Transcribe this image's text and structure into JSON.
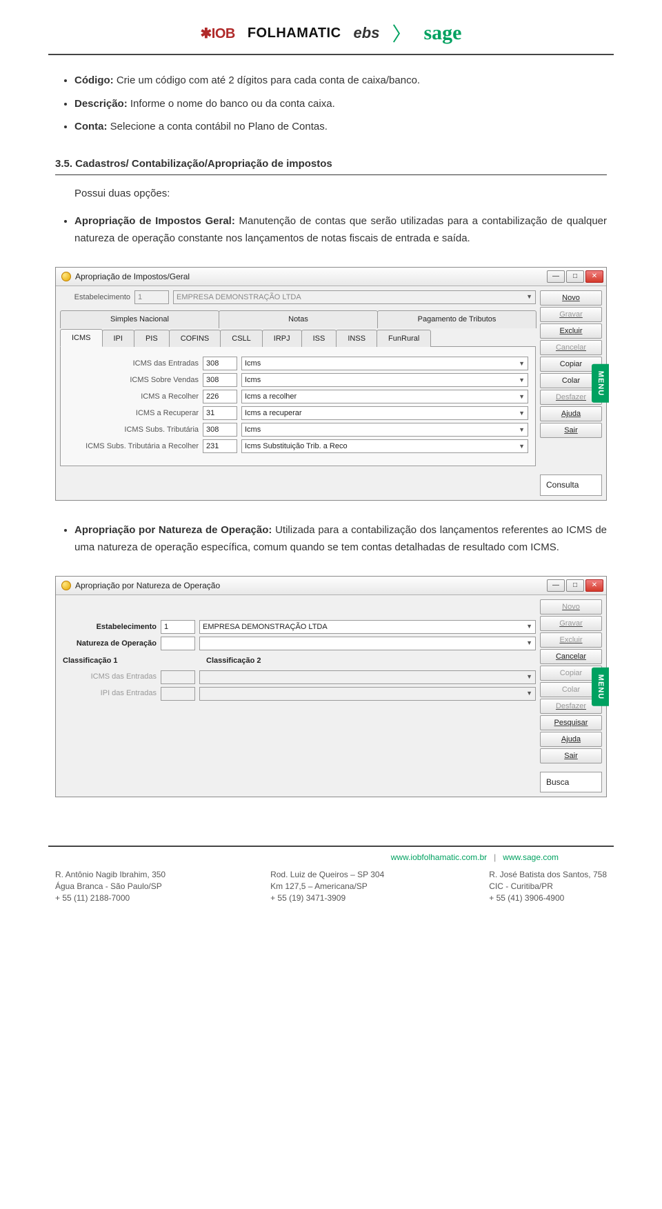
{
  "logos": {
    "iob": "✱IOB",
    "folhamatic": "FOLHAMATIC",
    "ebs": "ebs",
    "sep": "〉",
    "sage": "sage"
  },
  "bullets1": [
    {
      "label": "Código:",
      "text": " Crie um código com até 2 dígitos para cada conta de caixa/banco."
    },
    {
      "label": "Descrição:",
      "text": " Informe o nome do banco ou da conta caixa."
    },
    {
      "label": "Conta:",
      "text": " Selecione a conta contábil no Plano de Contas."
    }
  ],
  "section_heading": "3.5. Cadastros/ Contabilização/Apropriação de impostos",
  "intro": "Possui duas opções:",
  "bullet_apropriacao": {
    "label": "Apropriação de Impostos Geral:",
    "text": " Manutenção de contas que serão utilizadas para a contabilização de qualquer natureza de operação constante nos lançamentos de notas fiscais de entrada e saída."
  },
  "bullet_natureza": {
    "label": "Apropriação por Natureza de Operação:",
    "text": " Utilizada para a contabilização dos lançamentos referentes ao ICMS de uma natureza de operação específica, comum quando se tem contas detalhadas de resultado com ICMS."
  },
  "win1": {
    "title": "Apropriação de Impostos/Geral",
    "estab_label": "Estabelecimento",
    "estab_code": "1",
    "estab_name": "EMPRESA DEMONSTRAÇÃO LTDA",
    "top_tabs": [
      "Simples Nacional",
      "Notas",
      "Pagamento de Tributos"
    ],
    "sub_tabs": [
      "ICMS",
      "IPI",
      "PIS",
      "COFINS",
      "CSLL",
      "IRPJ",
      "ISS",
      "INSS",
      "FunRural"
    ],
    "rows": [
      {
        "label": "ICMS das Entradas",
        "code": "308",
        "desc": "Icms"
      },
      {
        "label": "ICMS Sobre Vendas",
        "code": "308",
        "desc": "Icms"
      },
      {
        "label": "ICMS a Recolher",
        "code": "226",
        "desc": "Icms a recolher"
      },
      {
        "label": "ICMS a Recuperar",
        "code": "31",
        "desc": "Icms a recuperar"
      },
      {
        "label": "ICMS Subs. Tributária",
        "code": "308",
        "desc": "Icms"
      },
      {
        "label": "ICMS Subs. Tributária a Recolher",
        "code": "231",
        "desc": "Icms Substituição Trib. a Reco"
      }
    ],
    "side_buttons": [
      {
        "t": "Novo",
        "d": false,
        "u": true
      },
      {
        "t": "Gravar",
        "d": true,
        "u": true
      },
      {
        "t": "Excluir",
        "d": false,
        "u": true
      },
      {
        "t": "Cancelar",
        "d": true,
        "u": true
      },
      {
        "t": "Copiar",
        "d": false,
        "u": false
      },
      {
        "t": "Colar",
        "d": false,
        "u": false
      },
      {
        "t": "Desfazer",
        "d": true,
        "u": true
      },
      {
        "t": "Ajuda",
        "d": false,
        "u": true
      },
      {
        "t": "Sair",
        "d": false,
        "u": true
      }
    ],
    "status": "Consulta",
    "menu": "MENU"
  },
  "win2": {
    "title": "Apropriação por Natureza de Operação",
    "fields": [
      {
        "label": "Estabelecimento",
        "code": "1",
        "desc": "EMPRESA DEMONSTRAÇÃO LTDA",
        "bold": true,
        "dd": true,
        "disabled": false
      },
      {
        "label": "Natureza de Operação",
        "code": "",
        "desc": "",
        "bold": true,
        "dd": true,
        "disabled": false
      }
    ],
    "class_header": {
      "c1": "Classificação 1",
      "c2": "Classificação 2"
    },
    "class_rows": [
      {
        "label": "ICMS das Entradas",
        "disabled": true
      },
      {
        "label": "IPI das Entradas",
        "disabled": true
      }
    ],
    "side_buttons": [
      {
        "t": "Novo",
        "d": true,
        "u": true
      },
      {
        "t": "Gravar",
        "d": true,
        "u": true
      },
      {
        "t": "Excluir",
        "d": true,
        "u": true
      },
      {
        "t": "Cancelar",
        "d": false,
        "u": true
      },
      {
        "t": "Copiar",
        "d": true,
        "u": false
      },
      {
        "t": "Colar",
        "d": true,
        "u": false
      },
      {
        "t": "Desfazer",
        "d": true,
        "u": true
      },
      {
        "t": "Pesquisar",
        "d": false,
        "u": true
      },
      {
        "t": "Ajuda",
        "d": false,
        "u": true
      },
      {
        "t": "Sair",
        "d": false,
        "u": true
      }
    ],
    "status": "Busca",
    "menu": "MENU"
  },
  "footer_links": {
    "l1": "www.iobfolhamatic.com.br",
    "sep": "|",
    "l2": "www.sage.com"
  },
  "footer_cols": [
    [
      "R. Antônio Nagib Ibrahim, 350",
      "Água Branca - São Paulo/SP",
      "+ 55 (11) 2188-7000"
    ],
    [
      "Rod. Luiz de Queiros – SP 304",
      "Km 127,5 – Americana/SP",
      "+ 55 (19) 3471-3909"
    ],
    [
      "R. José Batista dos Santos, 758",
      "CIC - Curitiba/PR",
      "+ 55 (41) 3906-4900"
    ]
  ]
}
